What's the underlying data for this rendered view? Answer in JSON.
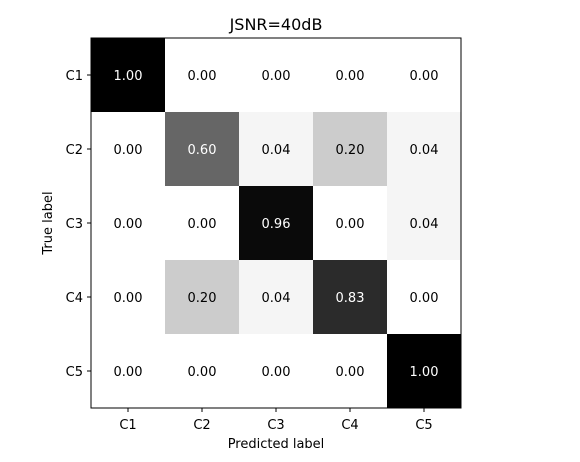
{
  "chart_data": {
    "type": "heatmap",
    "title": "JSNR=40dB",
    "xlabel": "Predicted label",
    "ylabel": "True label",
    "x_categories": [
      "C1",
      "C2",
      "C3",
      "C4",
      "C5"
    ],
    "y_categories": [
      "C1",
      "C2",
      "C3",
      "C4",
      "C5"
    ],
    "values": [
      [
        1.0,
        0.0,
        0.0,
        0.0,
        0.0
      ],
      [
        0.0,
        0.6,
        0.04,
        0.2,
        0.04
      ],
      [
        0.0,
        0.0,
        0.96,
        0.0,
        0.04
      ],
      [
        0.0,
        0.2,
        0.04,
        0.83,
        0.0
      ],
      [
        0.0,
        0.0,
        0.0,
        0.0,
        1.0
      ]
    ],
    "value_labels": [
      [
        "1.00",
        "0.00",
        "0.00",
        "0.00",
        "0.00"
      ],
      [
        "0.00",
        "0.60",
        "0.04",
        "0.20",
        "0.04"
      ],
      [
        "0.00",
        "0.00",
        "0.96",
        "0.00",
        "0.04"
      ],
      [
        "0.00",
        "0.20",
        "0.04",
        "0.83",
        "0.00"
      ],
      [
        "0.00",
        "0.00",
        "0.00",
        "0.00",
        "1.00"
      ]
    ],
    "colormap": "Greys",
    "vmin": 0,
    "vmax": 1,
    "grid": false,
    "legend": "none"
  }
}
